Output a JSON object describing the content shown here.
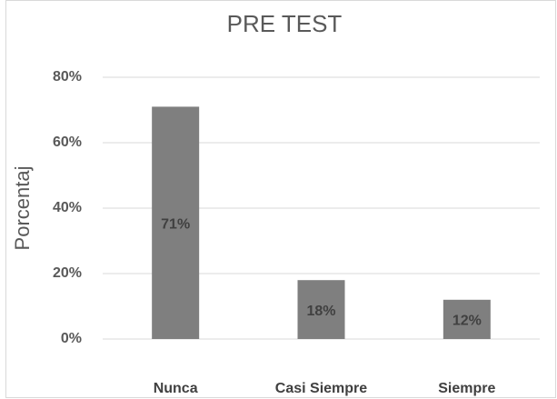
{
  "chart_data": {
    "type": "bar",
    "title": "PRE TEST",
    "y_label": "Porcentaj",
    "categories": [
      "Nunca",
      "Casi Siempre",
      "Siempre"
    ],
    "values": [
      71,
      18,
      12
    ],
    "value_labels": [
      "71%",
      "18%",
      "12%"
    ],
    "color": "#7f7f7f",
    "ylim": [
      0,
      80
    ],
    "yticks": [
      {
        "value": 0,
        "label": "0%"
      },
      {
        "value": 20,
        "label": "20%"
      },
      {
        "value": 40,
        "label": "40%"
      },
      {
        "value": 60,
        "label": "60%"
      },
      {
        "value": 80,
        "label": "80%"
      }
    ],
    "grid": true
  }
}
